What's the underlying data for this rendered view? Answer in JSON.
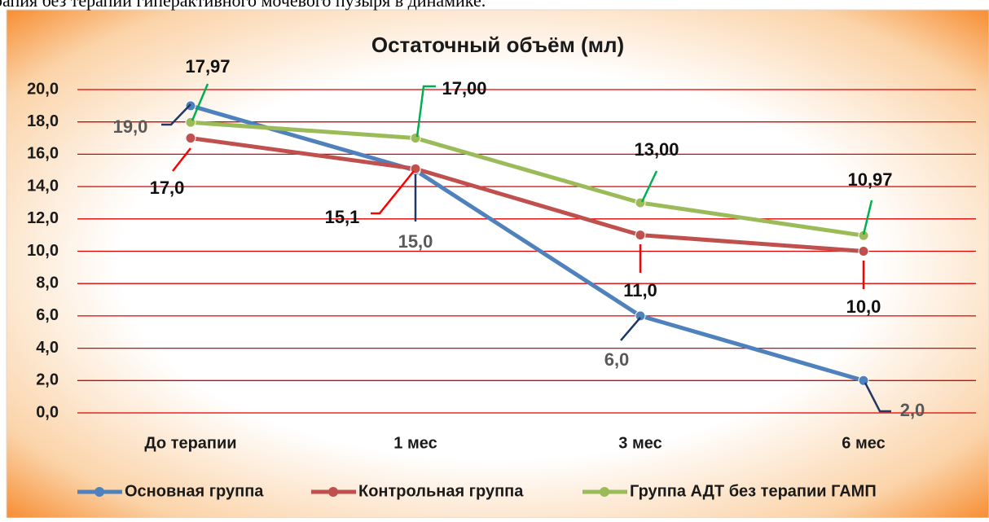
{
  "caption": "рапия без терапии гиперактивного мочевого пузыря в динамике.",
  "chart_data": {
    "type": "line",
    "title": "Остаточный объём (мл)",
    "categories": [
      "До терапии",
      "1 мес",
      "3 мес",
      "6 мес"
    ],
    "series": [
      {
        "name": "Основная группа",
        "color": "#4f81bd",
        "values": [
          19.0,
          15.0,
          6.0,
          2.0
        ],
        "value_labels": [
          "19,0",
          "15,0",
          "6,0",
          "2,0"
        ]
      },
      {
        "name": "Контрольная группа",
        "color": "#c0504d",
        "values": [
          17.0,
          15.1,
          11.0,
          10.0
        ],
        "value_labels": [
          "17,0",
          "15,1",
          "11,0",
          "10,0"
        ]
      },
      {
        "name": "Группа АДТ без терапии ГАМП",
        "color": "#9bbb59",
        "values": [
          17.97,
          17.0,
          13.0,
          10.97
        ],
        "value_labels": [
          "17,97",
          "17,00",
          "13,00",
          "10,97"
        ]
      }
    ],
    "ylim": [
      0,
      20
    ],
    "yticks": [
      {
        "value": 0,
        "label": "0,0"
      },
      {
        "value": 2,
        "label": "2,0"
      },
      {
        "value": 4,
        "label": "4,0"
      },
      {
        "value": 6,
        "label": "6,0"
      },
      {
        "value": 8,
        "label": "8,0"
      },
      {
        "value": 10,
        "label": "10,0"
      },
      {
        "value": 12,
        "label": "12,0"
      },
      {
        "value": 14,
        "label": "14,0"
      },
      {
        "value": 16,
        "label": "16,0"
      },
      {
        "value": 18,
        "label": "18,0"
      },
      {
        "value": 20,
        "label": "20,0"
      }
    ],
    "grid": true,
    "grid_color": "#e00000",
    "legend": "bottom"
  }
}
